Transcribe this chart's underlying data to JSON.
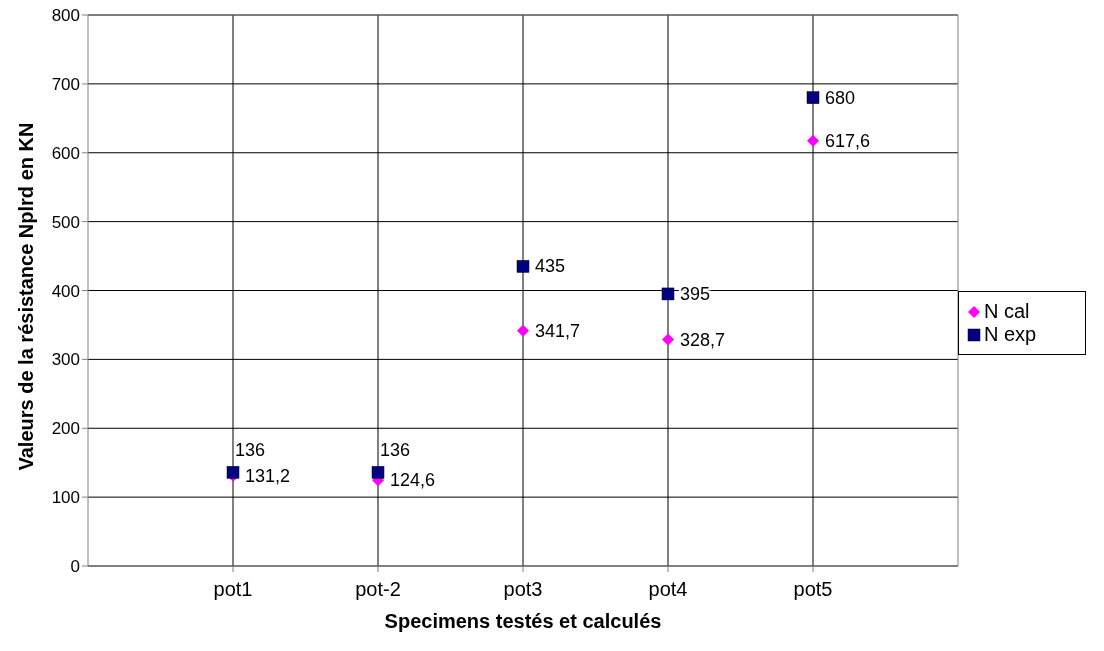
{
  "chart_data": {
    "type": "scatter",
    "xlabel": "Specimens testés et calculés",
    "ylabel": "Valeurs de la résistance Nplrd en KN",
    "categories": [
      "pot1",
      "pot-2",
      "pot3",
      "pot4",
      "pot5"
    ],
    "series": [
      {
        "name": "N cal",
        "color": "#ff00ff",
        "marker": "diamond",
        "values": [
          131.2,
          124.6,
          341.7,
          328.7,
          617.6
        ],
        "value_labels": [
          "131,2",
          "124,6",
          "341,7",
          "328,7",
          "617,6"
        ]
      },
      {
        "name": "N exp",
        "color": "#000080",
        "marker": "square",
        "values": [
          136,
          136,
          435,
          395,
          680
        ],
        "value_labels": [
          "136",
          "136",
          "435",
          "395",
          "680"
        ]
      }
    ],
    "ylim": [
      0,
      800
    ],
    "yticks": [
      0,
      100,
      200,
      300,
      400,
      500,
      600,
      700,
      800
    ],
    "grid": true,
    "legend": "right"
  }
}
